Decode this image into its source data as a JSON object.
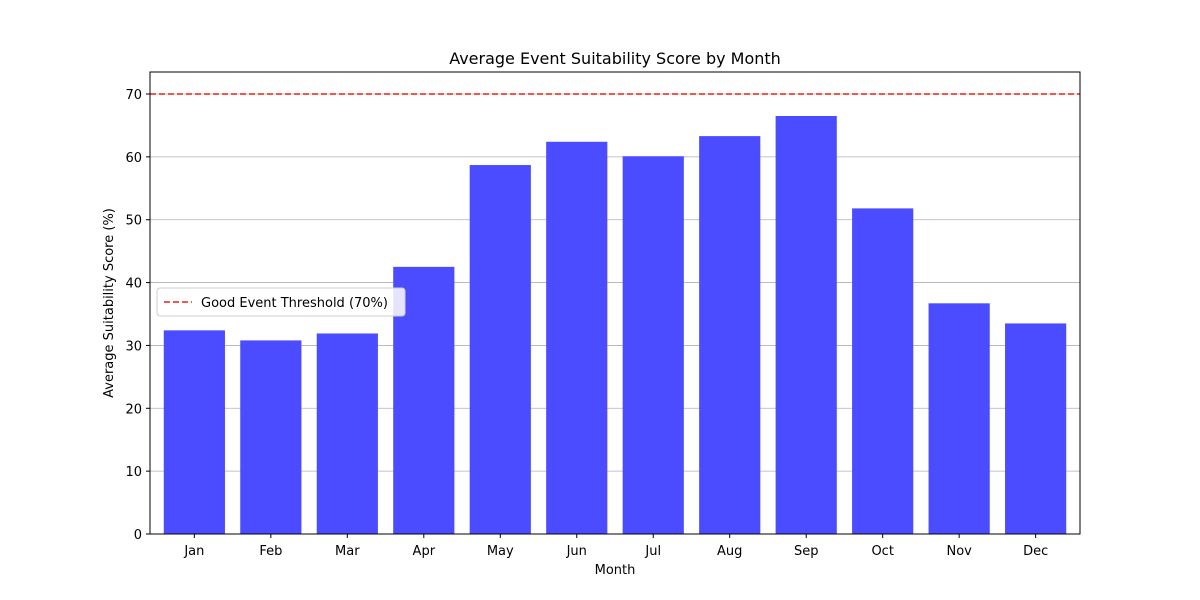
{
  "chart_data": {
    "type": "bar",
    "title": "Average Event Suitability Score by Month",
    "xlabel": "Month",
    "ylabel": "Average Suitability Score (%)",
    "categories": [
      "Jan",
      "Feb",
      "Mar",
      "Apr",
      "May",
      "Jun",
      "Jul",
      "Aug",
      "Sep",
      "Oct",
      "Nov",
      "Dec"
    ],
    "values": [
      32.4,
      30.8,
      31.9,
      42.5,
      58.7,
      62.4,
      60.1,
      63.3,
      66.5,
      51.8,
      36.7,
      33.5
    ],
    "ylim": [
      0,
      73.5
    ],
    "yticks": [
      0,
      10,
      20,
      30,
      40,
      50,
      60,
      70
    ],
    "grid": "y",
    "bar_color": "#4b4bff",
    "threshold": {
      "value": 70,
      "label": "Good Event Threshold (70%)",
      "color": "#e8201a",
      "style": "dashed"
    },
    "legend_position": "center-left"
  }
}
